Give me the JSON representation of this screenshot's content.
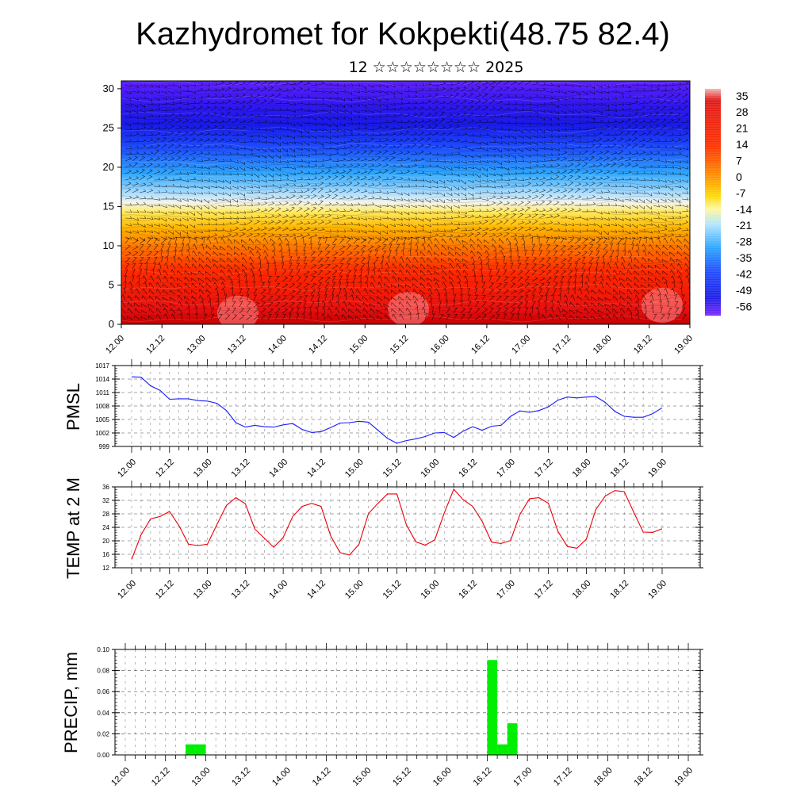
{
  "title": "Kazhydromet for Kokpekti(48.75 82.4)",
  "subtitle": "12 ☆☆☆☆☆☆☆☆ 2025",
  "colors": {
    "pmsl_line": "#1a1aff",
    "temp_line": "#e8000b",
    "precip_bar": "#00ee00",
    "grid": "#000000"
  },
  "chart_data": [
    {
      "type": "heatmap",
      "title": "",
      "y_ticks": [
        "0",
        "5",
        "10",
        "15",
        "20",
        "25",
        "30"
      ],
      "y_range": [
        0,
        31
      ],
      "x_ticks": [
        "12.00",
        "12.12",
        "13.00",
        "13.12",
        "14.00",
        "14.12",
        "15.00",
        "15.12",
        "16.00",
        "16.12",
        "17.00",
        "17.12",
        "18.00",
        "18.12",
        "19.00"
      ],
      "colorbar_labels": [
        "35",
        "28",
        "21",
        "14",
        "7",
        "0",
        "-7",
        "-14",
        "-21",
        "-28",
        "-35",
        "-42",
        "-49",
        "-56"
      ],
      "colorbar_range": [
        -60,
        38
      ],
      "overlay": "wind barbs"
    },
    {
      "type": "line",
      "ylabel": "PMSL",
      "ylim": [
        999,
        1017
      ],
      "y_ticks": [
        "999",
        "1002",
        "1005",
        "1008",
        "1011",
        "1014",
        "1017"
      ],
      "x_ticks": [
        "12.00",
        "12.12",
        "13.00",
        "13.12",
        "14.00",
        "14.12",
        "15.00",
        "15.12",
        "16.00",
        "16.12",
        "17.00",
        "17.12",
        "18.00",
        "18.12",
        "19.00"
      ],
      "series": [
        {
          "values": [
            1014.5,
            1014.4,
            1012.5,
            1011.5,
            1009.5,
            1009.6,
            1009.6,
            1009.2,
            1009.1,
            1008.6,
            1007.0,
            1004.3,
            1003.3,
            1003.7,
            1003.4,
            1003.3,
            1003.8,
            1004.1,
            1002.8,
            1002.1,
            1002.3,
            1003.2,
            1004.2,
            1004.3,
            1004.6,
            1004.4,
            1002.6,
            1000.8,
            999.7,
            1000.3,
            1000.7,
            1001.2,
            1002.0,
            1002.1,
            1001.0,
            1002.4,
            1003.4,
            1002.6,
            1003.5,
            1003.7,
            1005.7,
            1006.9,
            1006.6,
            1007.0,
            1007.8,
            1009.3,
            1010.0,
            1009.8,
            1010.0,
            1010.1,
            1008.8,
            1006.8,
            1005.7,
            1005.5,
            1005.5,
            1006.3,
            1007.6
          ]
        }
      ]
    },
    {
      "type": "line",
      "ylabel": "TEMP at 2 M",
      "ylim": [
        12,
        36
      ],
      "y_ticks": [
        "12",
        "16",
        "20",
        "24",
        "28",
        "32",
        "36"
      ],
      "x_ticks": [
        "12.00",
        "12.12",
        "13.00",
        "13.12",
        "14.00",
        "14.12",
        "15.00",
        "15.12",
        "16.00",
        "16.12",
        "17.00",
        "17.12",
        "18.00",
        "18.12",
        "19.00"
      ],
      "series": [
        {
          "values": [
            14.5,
            21.8,
            26.5,
            27.2,
            28.7,
            24.5,
            19.0,
            18.6,
            19.0,
            24.8,
            30.5,
            32.8,
            31.0,
            23.5,
            20.8,
            18.1,
            21.0,
            27.2,
            30.2,
            31.1,
            30.2,
            21.5,
            16.5,
            15.8,
            19.0,
            28.1,
            31.1,
            33.9,
            33.9,
            24.8,
            19.7,
            18.7,
            20.3,
            28.2,
            35.3,
            32.2,
            30.2,
            25.8,
            19.6,
            19.2,
            20.1,
            27.9,
            32.5,
            32.8,
            31.1,
            22.8,
            18.3,
            17.8,
            20.5,
            29.3,
            33.3,
            34.9,
            34.6,
            28.5,
            22.6,
            22.5,
            23.6
          ]
        }
      ]
    },
    {
      "type": "bar",
      "ylabel": "PRECIP, mm",
      "ylim": [
        0,
        0.1
      ],
      "y_ticks": [
        "0.00",
        "0.02",
        "0.04",
        "0.06",
        "0.08",
        "0.10"
      ],
      "x_ticks": [
        "12.00",
        "12.12",
        "13.00",
        "13.12",
        "14.00",
        "14.12",
        "15.00",
        "15.12",
        "16.00",
        "16.12",
        "17.00",
        "17.12",
        "18.00",
        "18.12",
        "19.00"
      ],
      "values": [
        0,
        0,
        0,
        0,
        0,
        0,
        0.01,
        0.01,
        0,
        0,
        0,
        0,
        0,
        0,
        0,
        0,
        0,
        0,
        0,
        0,
        0,
        0,
        0,
        0,
        0,
        0,
        0,
        0,
        0,
        0,
        0,
        0,
        0,
        0,
        0,
        0,
        0.09,
        0.01,
        0.03,
        0,
        0,
        0,
        0,
        0,
        0,
        0,
        0,
        0,
        0,
        0,
        0,
        0,
        0,
        0,
        0,
        0
      ]
    }
  ]
}
